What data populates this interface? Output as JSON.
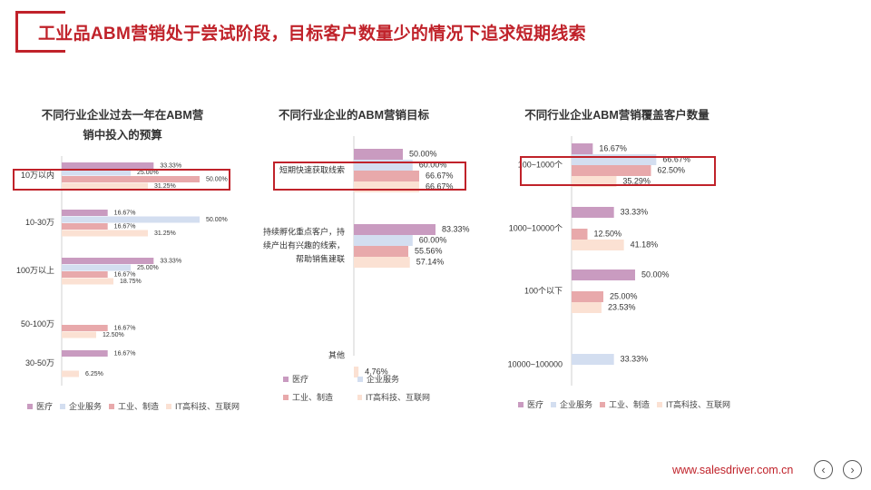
{
  "page": {
    "title": "工业品ABM营销处于尝试阶段，目标客户数量少的情况下追求短期线索",
    "footer_url": "www.salesdriver.com.cn",
    "nav": {
      "prev_icon": "chevron-left-icon",
      "next_icon": "chevron-right-icon"
    },
    "accent_color": "#c0222a"
  },
  "chart_data": [
    {
      "type": "bar",
      "orientation": "horizontal",
      "title": "不同行业企业过去一年在ABM营销中投入的预算",
      "categories": [
        "10万以内",
        "10-30万",
        "100万以上",
        "50-100万",
        "30-50万"
      ],
      "series": [
        {
          "name": "医疗",
          "color": "#c99bc0",
          "values": [
            33.33,
            16.67,
            33.33,
            null,
            16.67
          ],
          "labels": [
            "33.33%",
            "16.67%",
            "33.33%",
            "",
            "16.67%"
          ]
        },
        {
          "name": "企业服务",
          "color": "#d3def0",
          "values": [
            25.0,
            50.0,
            25.0,
            null,
            null
          ],
          "labels": [
            "25.00%",
            "50.00%",
            "25.00%",
            "",
            ""
          ]
        },
        {
          "name": "工业、制造",
          "color": "#e8a9ab",
          "values": [
            50.0,
            16.67,
            16.67,
            16.67,
            null
          ],
          "labels": [
            "50.00%",
            "16.67%",
            "16.67%",
            "16.67%",
            ""
          ]
        },
        {
          "name": "IT高科技、互联网",
          "color": "#fbe1d3",
          "values": [
            31.25,
            31.25,
            18.75,
            12.5,
            6.25
          ],
          "labels": [
            "31.25%",
            "31.25%",
            "18.75%",
            "12.50%",
            "6.25%"
          ]
        }
      ],
      "xlim": [
        0,
        50
      ],
      "legend": "bottom",
      "grid": false
    },
    {
      "type": "bar",
      "orientation": "horizontal",
      "title": "不同行业企业的ABM营销目标",
      "categories": [
        "短期快速获取线索",
        "持续孵化重点客户，持续产出有兴趣的线索，帮助销售建联",
        "其他"
      ],
      "category_lines": [
        [
          "短期快速获取线索"
        ],
        [
          "持续孵化重点客户，持",
          "续产出有兴趣的线索，",
          "帮助销售建联"
        ],
        [
          "其他"
        ]
      ],
      "series": [
        {
          "name": "医疗",
          "color": "#c99bc0",
          "values": [
            50.0,
            83.33,
            null
          ],
          "labels": [
            "50.00%",
            "83.33%",
            ""
          ]
        },
        {
          "name": "企业服务",
          "color": "#d3def0",
          "values": [
            60.0,
            60.0,
            null
          ],
          "labels": [
            "60.00%",
            "60.00%",
            ""
          ]
        },
        {
          "name": "工业、制造",
          "color": "#e8a9ab",
          "values": [
            66.67,
            55.56,
            null
          ],
          "labels": [
            "66.67%",
            "55.56%",
            ""
          ]
        },
        {
          "name": "IT高科技、互联网",
          "color": "#fbe1d3",
          "values": [
            66.67,
            57.14,
            4.76
          ],
          "labels": [
            "66.67%",
            "57.14%",
            "4.76%"
          ]
        }
      ],
      "xlim": [
        0,
        100
      ],
      "legend": "bottom",
      "grid": false
    },
    {
      "type": "bar",
      "orientation": "horizontal",
      "title": "不同行业企业ABM营销覆盖客户数量",
      "categories": [
        "100~1000个",
        "1000~10000个",
        "100个以下",
        "10000~100000"
      ],
      "series": [
        {
          "name": "医疗",
          "color": "#c99bc0",
          "values": [
            16.67,
            33.33,
            50.0,
            null
          ],
          "labels": [
            "16.67%",
            "33.33%",
            "50.00%",
            ""
          ]
        },
        {
          "name": "企业服务",
          "color": "#d3def0",
          "values": [
            66.67,
            null,
            null,
            33.33
          ],
          "labels": [
            "66.67%",
            "",
            "",
            "33.33%"
          ]
        },
        {
          "name": "工业、制造",
          "color": "#e8a9ab",
          "values": [
            62.5,
            12.5,
            25.0,
            null
          ],
          "labels": [
            "62.50%",
            "12.50%",
            "25.00%",
            ""
          ]
        },
        {
          "name": "IT高科技、互联网",
          "color": "#fbe1d3",
          "values": [
            35.29,
            41.18,
            23.53,
            null
          ],
          "labels": [
            "35.29%",
            "41.18%",
            "23.53%",
            ""
          ]
        }
      ],
      "xlim": [
        0,
        100
      ],
      "legend": "bottom",
      "grid": false
    }
  ]
}
